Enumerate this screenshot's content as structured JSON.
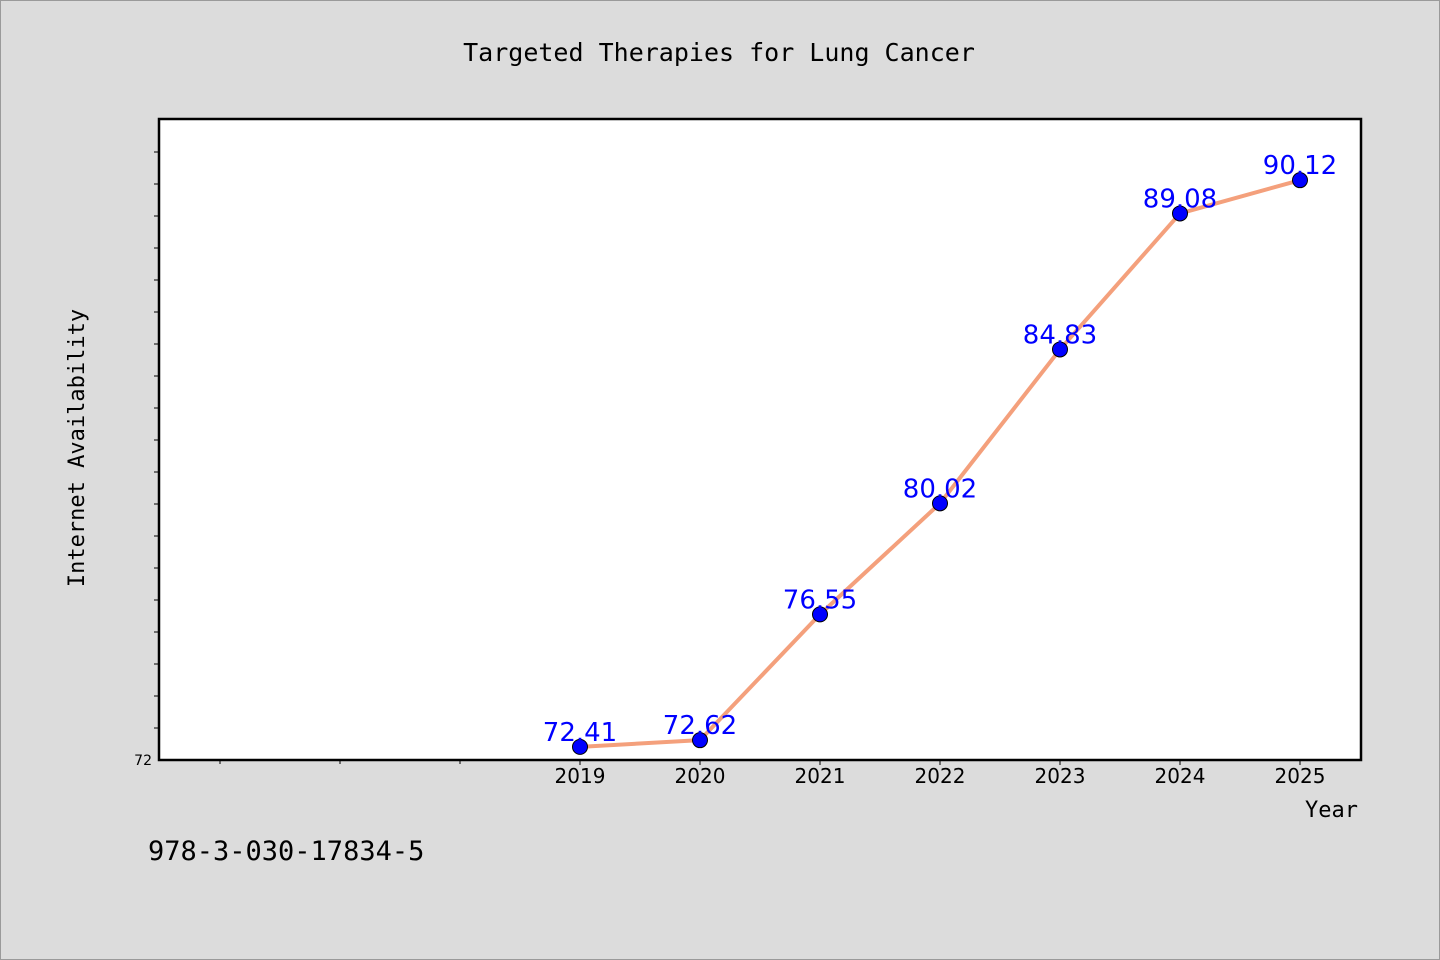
{
  "chart_data": {
    "type": "line",
    "title": "Targeted Therapies for Lung Cancer",
    "xlabel": "Year",
    "ylabel": "Internet Availability",
    "x": [
      "2019",
      "2020",
      "2021",
      "2022",
      "2023",
      "2024",
      "2025"
    ],
    "series": [
      {
        "values": [
          72.41,
          72.62,
          76.55,
          80.02,
          84.83,
          89.08,
          90.12
        ],
        "labels": [
          "72.41",
          "72.62",
          "76.55",
          "80.02",
          "84.83",
          "89.08",
          "90.12"
        ]
      }
    ],
    "ylim": [
      72,
      92
    ],
    "y_tick_labels": [
      "72"
    ],
    "line_color": "#f4a07c",
    "marker_color": "#0000ff",
    "label_color": "#0000ff",
    "grid": false,
    "legend": "none"
  },
  "footer": {
    "code": "978-3-030-17834-5"
  },
  "colors": {
    "background": "#dcdcdc",
    "plot_background": "#ffffff"
  }
}
